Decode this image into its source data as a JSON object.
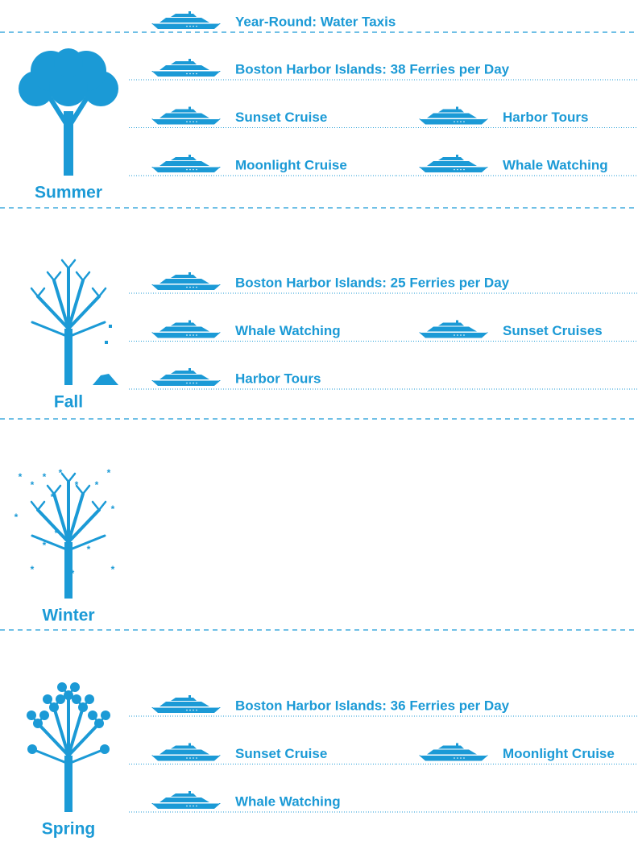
{
  "header": {
    "title": "Year-Round: Water Taxis"
  },
  "seasons": [
    {
      "name": "Summer",
      "items": [
        "Boston Harbor Islands: 38 Ferries per Day",
        "Sunset Cruise",
        "Harbor Tours",
        "Moonlight Cruise",
        "Whale Watching"
      ]
    },
    {
      "name": "Fall",
      "items": [
        "Boston Harbor Islands: 25 Ferries per Day",
        "Whale Watching",
        "Sunset Cruises",
        "Harbor Tours"
      ]
    },
    {
      "name": "Winter",
      "items": []
    },
    {
      "name": "Spring",
      "items": [
        "Boston Harbor Islands: 36 Ferries per Day",
        "Sunset Cruise",
        "Moonlight Cruise",
        "Whale Watching"
      ]
    }
  ]
}
